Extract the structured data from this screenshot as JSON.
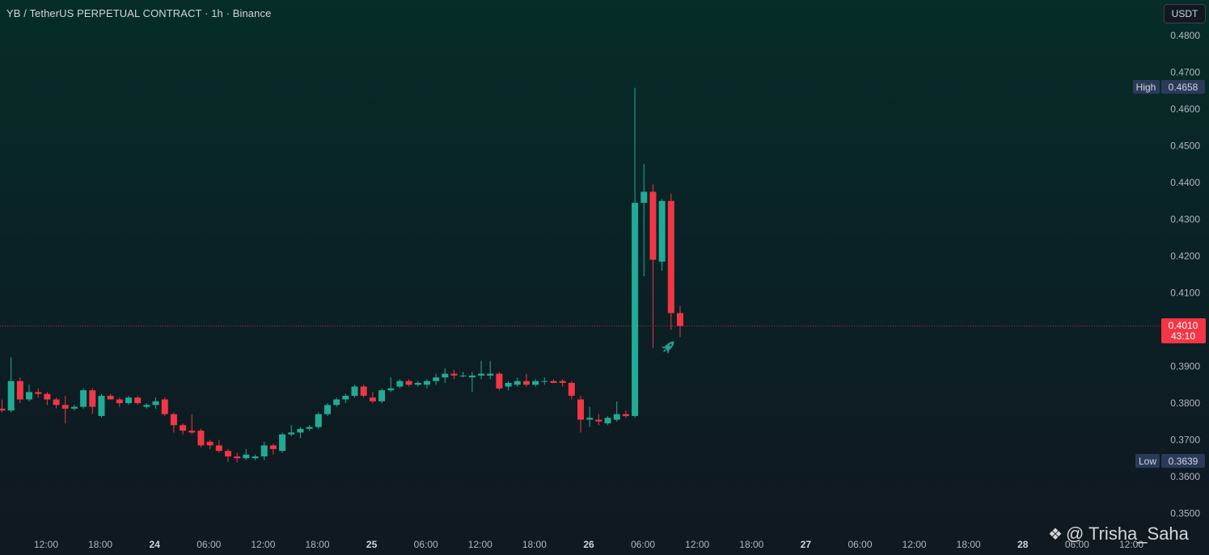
{
  "header": {
    "title": "YB / TetherUS PERPETUAL CONTRACT · 1h · Binance",
    "currency": "USDT"
  },
  "markers": {
    "high_label": "High",
    "high_value": "0.4658",
    "low_label": "Low",
    "low_value": "0.3639",
    "price_value": "0.4010",
    "countdown": "43:10"
  },
  "colors": {
    "up": "#22ab94",
    "down": "#f23645",
    "price_line": "#f23645"
  },
  "icons": {
    "rocket": "rocket-icon",
    "watermark_logo": "binance-diamond-icon"
  },
  "watermark": {
    "text": "@ Trisha_Saha"
  },
  "chart_data": {
    "type": "candlestick",
    "timeframe": "1h",
    "y_ticks": [
      "0.4800",
      "0.4700",
      "0.4600",
      "0.4500",
      "0.4400",
      "0.4300",
      "0.4200",
      "0.4100",
      "0.3900",
      "0.3800",
      "0.3700",
      "0.3600",
      "0.3500"
    ],
    "x_ticks": [
      {
        "label": "12:00",
        "bold": false
      },
      {
        "label": "18:00",
        "bold": false
      },
      {
        "label": "24",
        "bold": true
      },
      {
        "label": "06:00",
        "bold": false
      },
      {
        "label": "12:00",
        "bold": false
      },
      {
        "label": "18:00",
        "bold": false
      },
      {
        "label": "25",
        "bold": true
      },
      {
        "label": "06:00",
        "bold": false
      },
      {
        "label": "12:00",
        "bold": false
      },
      {
        "label": "18:00",
        "bold": false
      },
      {
        "label": "26",
        "bold": true
      },
      {
        "label": "06:00",
        "bold": false
      },
      {
        "label": "12:00",
        "bold": false
      },
      {
        "label": "18:00",
        "bold": false
      },
      {
        "label": "27",
        "bold": true
      },
      {
        "label": "06:00",
        "bold": false
      },
      {
        "label": "12:00",
        "bold": false
      },
      {
        "label": "18:00",
        "bold": false
      },
      {
        "label": "28",
        "bold": true
      },
      {
        "label": "06:00",
        "bold": false
      },
      {
        "label": "12:00",
        "bold": false
      }
    ],
    "ylim": [
      0.345,
      0.485
    ],
    "high": 0.4658,
    "low": 0.3639,
    "last_price": 0.401,
    "candles": [
      {
        "o": 0.3785,
        "h": 0.381,
        "l": 0.3775,
        "c": 0.378
      },
      {
        "o": 0.378,
        "h": 0.3925,
        "l": 0.3775,
        "c": 0.386
      },
      {
        "o": 0.386,
        "h": 0.387,
        "l": 0.38,
        "c": 0.381
      },
      {
        "o": 0.381,
        "h": 0.385,
        "l": 0.3805,
        "c": 0.383
      },
      {
        "o": 0.383,
        "h": 0.384,
        "l": 0.3815,
        "c": 0.3825
      },
      {
        "o": 0.3825,
        "h": 0.383,
        "l": 0.3795,
        "c": 0.381
      },
      {
        "o": 0.381,
        "h": 0.3815,
        "l": 0.3785,
        "c": 0.3795
      },
      {
        "o": 0.3795,
        "h": 0.382,
        "l": 0.3745,
        "c": 0.3785
      },
      {
        "o": 0.3785,
        "h": 0.3795,
        "l": 0.378,
        "c": 0.379
      },
      {
        "o": 0.379,
        "h": 0.384,
        "l": 0.3785,
        "c": 0.3835
      },
      {
        "o": 0.3835,
        "h": 0.384,
        "l": 0.377,
        "c": 0.379
      },
      {
        "o": 0.3765,
        "h": 0.3825,
        "l": 0.376,
        "c": 0.382
      },
      {
        "o": 0.382,
        "h": 0.3825,
        "l": 0.381,
        "c": 0.381
      },
      {
        "o": 0.381,
        "h": 0.3815,
        "l": 0.379,
        "c": 0.38
      },
      {
        "o": 0.38,
        "h": 0.382,
        "l": 0.3795,
        "c": 0.3815
      },
      {
        "o": 0.3815,
        "h": 0.382,
        "l": 0.3795,
        "c": 0.38
      },
      {
        "o": 0.379,
        "h": 0.38,
        "l": 0.3785,
        "c": 0.3795
      },
      {
        "o": 0.3795,
        "h": 0.3815,
        "l": 0.3785,
        "c": 0.3805
      },
      {
        "o": 0.381,
        "h": 0.3815,
        "l": 0.3765,
        "c": 0.377
      },
      {
        "o": 0.377,
        "h": 0.3775,
        "l": 0.372,
        "c": 0.374
      },
      {
        "o": 0.374,
        "h": 0.3745,
        "l": 0.3715,
        "c": 0.3725
      },
      {
        "o": 0.3725,
        "h": 0.377,
        "l": 0.3715,
        "c": 0.372
      },
      {
        "o": 0.3725,
        "h": 0.373,
        "l": 0.368,
        "c": 0.3685
      },
      {
        "o": 0.3695,
        "h": 0.37,
        "l": 0.3675,
        "c": 0.3685
      },
      {
        "o": 0.3685,
        "h": 0.37,
        "l": 0.3665,
        "c": 0.367
      },
      {
        "o": 0.367,
        "h": 0.3675,
        "l": 0.364,
        "c": 0.3655
      },
      {
        "o": 0.3655,
        "h": 0.3665,
        "l": 0.3639,
        "c": 0.365
      },
      {
        "o": 0.365,
        "h": 0.3675,
        "l": 0.3645,
        "c": 0.366
      },
      {
        "o": 0.365,
        "h": 0.366,
        "l": 0.3645,
        "c": 0.3655
      },
      {
        "o": 0.3655,
        "h": 0.3695,
        "l": 0.3645,
        "c": 0.3685
      },
      {
        "o": 0.3685,
        "h": 0.369,
        "l": 0.366,
        "c": 0.3675
      },
      {
        "o": 0.367,
        "h": 0.372,
        "l": 0.3665,
        "c": 0.3715
      },
      {
        "o": 0.3715,
        "h": 0.374,
        "l": 0.371,
        "c": 0.372
      },
      {
        "o": 0.372,
        "h": 0.3735,
        "l": 0.3705,
        "c": 0.373
      },
      {
        "o": 0.373,
        "h": 0.374,
        "l": 0.3725,
        "c": 0.3735
      },
      {
        "o": 0.3735,
        "h": 0.3775,
        "l": 0.373,
        "c": 0.377
      },
      {
        "o": 0.377,
        "h": 0.38,
        "l": 0.3765,
        "c": 0.3795
      },
      {
        "o": 0.3795,
        "h": 0.3815,
        "l": 0.379,
        "c": 0.381
      },
      {
        "o": 0.381,
        "h": 0.3825,
        "l": 0.38,
        "c": 0.382
      },
      {
        "o": 0.382,
        "h": 0.385,
        "l": 0.3815,
        "c": 0.3845
      },
      {
        "o": 0.3845,
        "h": 0.385,
        "l": 0.3815,
        "c": 0.382
      },
      {
        "o": 0.3815,
        "h": 0.383,
        "l": 0.38,
        "c": 0.3805
      },
      {
        "o": 0.3805,
        "h": 0.384,
        "l": 0.38,
        "c": 0.3835
      },
      {
        "o": 0.3835,
        "h": 0.387,
        "l": 0.383,
        "c": 0.384
      },
      {
        "o": 0.3845,
        "h": 0.3865,
        "l": 0.384,
        "c": 0.386
      },
      {
        "o": 0.386,
        "h": 0.3865,
        "l": 0.3845,
        "c": 0.385
      },
      {
        "o": 0.385,
        "h": 0.386,
        "l": 0.3845,
        "c": 0.3855
      },
      {
        "o": 0.385,
        "h": 0.3865,
        "l": 0.384,
        "c": 0.386
      },
      {
        "o": 0.386,
        "h": 0.388,
        "l": 0.385,
        "c": 0.387
      },
      {
        "o": 0.387,
        "h": 0.3895,
        "l": 0.3855,
        "c": 0.388
      },
      {
        "o": 0.388,
        "h": 0.389,
        "l": 0.3865,
        "c": 0.3875
      },
      {
        "o": 0.3875,
        "h": 0.3885,
        "l": 0.387,
        "c": 0.3875
      },
      {
        "o": 0.387,
        "h": 0.3885,
        "l": 0.383,
        "c": 0.3875
      },
      {
        "o": 0.3875,
        "h": 0.3915,
        "l": 0.3865,
        "c": 0.388
      },
      {
        "o": 0.3875,
        "h": 0.3915,
        "l": 0.3865,
        "c": 0.388
      },
      {
        "o": 0.388,
        "h": 0.3885,
        "l": 0.3835,
        "c": 0.384
      },
      {
        "o": 0.3845,
        "h": 0.386,
        "l": 0.3835,
        "c": 0.3855
      },
      {
        "o": 0.385,
        "h": 0.387,
        "l": 0.3845,
        "c": 0.386
      },
      {
        "o": 0.386,
        "h": 0.388,
        "l": 0.3845,
        "c": 0.385
      },
      {
        "o": 0.385,
        "h": 0.3865,
        "l": 0.3845,
        "c": 0.386
      },
      {
        "o": 0.386,
        "h": 0.387,
        "l": 0.385,
        "c": 0.386
      },
      {
        "o": 0.386,
        "h": 0.3865,
        "l": 0.3855,
        "c": 0.3855
      },
      {
        "o": 0.386,
        "h": 0.3865,
        "l": 0.3845,
        "c": 0.3855
      },
      {
        "o": 0.3855,
        "h": 0.386,
        "l": 0.381,
        "c": 0.382
      },
      {
        "o": 0.381,
        "h": 0.382,
        "l": 0.372,
        "c": 0.3755
      },
      {
        "o": 0.3755,
        "h": 0.379,
        "l": 0.3735,
        "c": 0.376
      },
      {
        "o": 0.3755,
        "h": 0.377,
        "l": 0.374,
        "c": 0.375
      },
      {
        "o": 0.3745,
        "h": 0.3765,
        "l": 0.374,
        "c": 0.376
      },
      {
        "o": 0.3755,
        "h": 0.3805,
        "l": 0.375,
        "c": 0.377
      },
      {
        "o": 0.377,
        "h": 0.378,
        "l": 0.376,
        "c": 0.3765
      },
      {
        "o": 0.3765,
        "h": 0.4658,
        "l": 0.376,
        "c": 0.4345
      },
      {
        "o": 0.4345,
        "h": 0.445,
        "l": 0.4145,
        "c": 0.4375
      },
      {
        "o": 0.4375,
        "h": 0.4395,
        "l": 0.395,
        "c": 0.419
      },
      {
        "o": 0.4185,
        "h": 0.4355,
        "l": 0.416,
        "c": 0.435
      },
      {
        "o": 0.435,
        "h": 0.437,
        "l": 0.4,
        "c": 0.4045
      },
      {
        "o": 0.4045,
        "h": 0.4065,
        "l": 0.398,
        "c": 0.401
      }
    ]
  }
}
